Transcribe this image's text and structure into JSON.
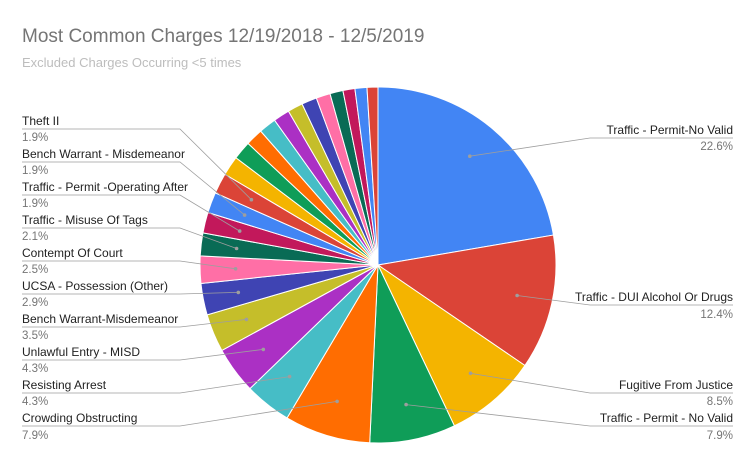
{
  "chart_data": {
    "type": "pie",
    "title": "Most Common Charges 12/19/2018 - 12/5/2019",
    "subtitle": "Excluded Charges Occurring <5 times",
    "slices": [
      {
        "label": "Traffic - Permit-No Valid",
        "pct_label": "22.6%",
        "value": 22.6,
        "color": "#4285f4",
        "labeled": true
      },
      {
        "label": "Traffic - DUI Alcohol Or Drugs",
        "pct_label": "12.4%",
        "value": 12.4,
        "color": "#db4437",
        "labeled": true
      },
      {
        "label": "Fugitive From Justice",
        "pct_label": "8.5%",
        "value": 8.5,
        "color": "#f4b400",
        "labeled": true
      },
      {
        "label": "Traffic - Permit - No Valid",
        "pct_label": "7.9%",
        "value": 7.9,
        "color": "#0f9d58",
        "labeled": true
      },
      {
        "label": "Crowding Obstructing",
        "pct_label": "7.9%",
        "value": 7.9,
        "color": "#ff6d01",
        "labeled": true
      },
      {
        "label": "Resisting Arrest",
        "pct_label": "4.3%",
        "value": 4.3,
        "color": "#46bdc6",
        "labeled": true
      },
      {
        "label": "Unlawful Entry - MISD",
        "pct_label": "4.3%",
        "value": 4.3,
        "color": "#ab30c4",
        "labeled": true
      },
      {
        "label": "Bench Warrant-Misdemeanor",
        "pct_label": "3.5%",
        "value": 3.5,
        "color": "#c5be2a",
        "labeled": true
      },
      {
        "label": "UCSA - Possession (Other)",
        "pct_label": "2.9%",
        "value": 2.9,
        "color": "#3f44b3",
        "labeled": true
      },
      {
        "label": "Contempt Of Court",
        "pct_label": "2.5%",
        "value": 2.5,
        "color": "#ff6fa6",
        "labeled": true
      },
      {
        "label": "Traffic - Misuse Of Tags",
        "pct_label": "2.1%",
        "value": 2.1,
        "color": "#096b55",
        "labeled": true
      },
      {
        "label": "Traffic - Permit -Operating After",
        "pct_label": "1.9%",
        "value": 1.9,
        "color": "#c2185b",
        "labeled": true
      },
      {
        "label": "Bench Warrant - Misdemeanor",
        "pct_label": "1.9%",
        "value": 1.9,
        "color": "#4285f4",
        "labeled": true
      },
      {
        "label": "Theft II",
        "pct_label": "1.9%",
        "value": 1.9,
        "color": "#db4437",
        "labeled": true
      },
      {
        "label": "",
        "pct_label": "",
        "value": 1.8,
        "color": "#f4b400",
        "labeled": false
      },
      {
        "label": "",
        "pct_label": "",
        "value": 1.7,
        "color": "#0f9d58",
        "labeled": false
      },
      {
        "label": "",
        "pct_label": "",
        "value": 1.6,
        "color": "#ff6d01",
        "labeled": false
      },
      {
        "label": "",
        "pct_label": "",
        "value": 1.6,
        "color": "#46bdc6",
        "labeled": false
      },
      {
        "label": "",
        "pct_label": "",
        "value": 1.5,
        "color": "#ab30c4",
        "labeled": false
      },
      {
        "label": "",
        "pct_label": "",
        "value": 1.4,
        "color": "#c5be2a",
        "labeled": false
      },
      {
        "label": "",
        "pct_label": "",
        "value": 1.4,
        "color": "#3f44b3",
        "labeled": false
      },
      {
        "label": "",
        "pct_label": "",
        "value": 1.3,
        "color": "#ff6fa6",
        "labeled": false
      },
      {
        "label": "",
        "pct_label": "",
        "value": 1.2,
        "color": "#096b55",
        "labeled": false
      },
      {
        "label": "",
        "pct_label": "",
        "value": 1.1,
        "color": "#c2185b",
        "labeled": false
      },
      {
        "label": "",
        "pct_label": "",
        "value": 1.1,
        "color": "#4285f4",
        "labeled": false
      },
      {
        "label": "",
        "pct_label": "",
        "value": 1.0,
        "color": "#db4437",
        "labeled": false
      }
    ]
  }
}
